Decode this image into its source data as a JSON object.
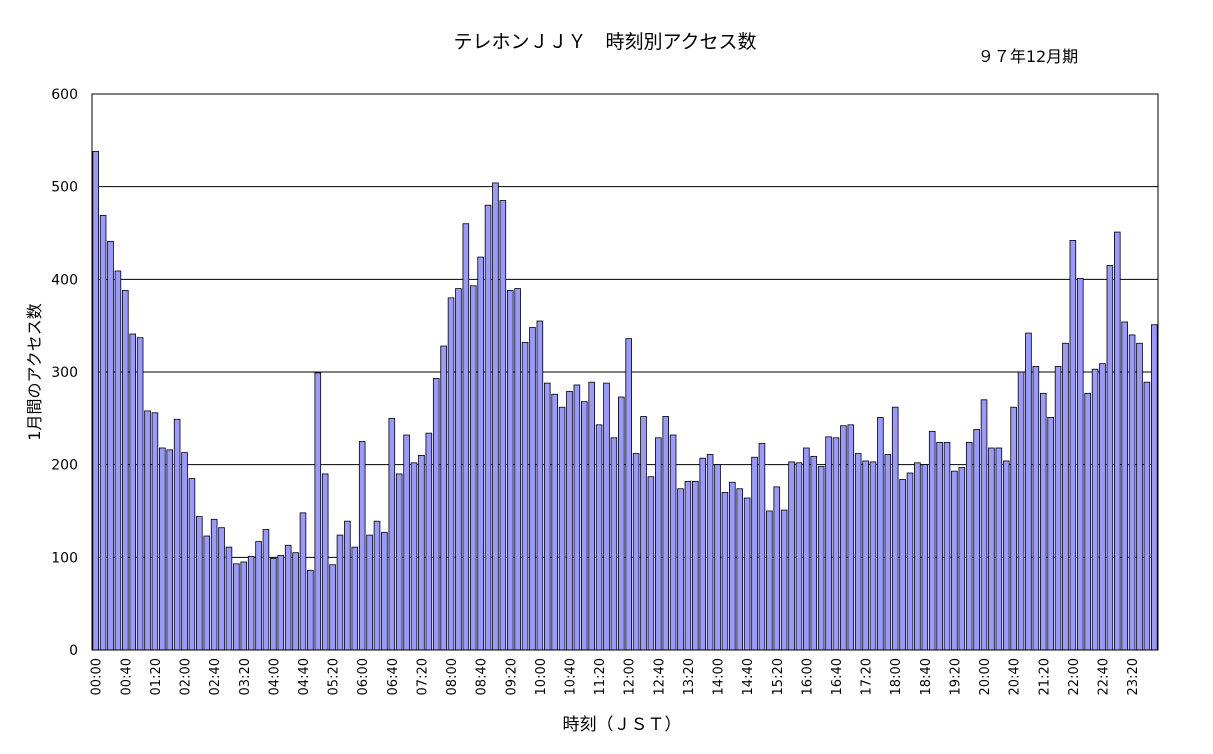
{
  "chart_data": {
    "type": "bar",
    "title": "テレホンＪＪＹ　時刻別アクセス数",
    "subtitle": "９７年12月期",
    "xlabel": "時刻（ＪＳＴ）",
    "ylabel": "1月間のアクセス数",
    "ylim": [
      0,
      600
    ],
    "yticks": [
      0,
      100,
      200,
      300,
      400,
      500,
      600
    ],
    "grid": "horizontal",
    "legend": "none",
    "colors": {
      "bar": "#9999ff",
      "bar_edge": "#000000",
      "grid": "#000000"
    },
    "x_tick_labels": [
      "00:00",
      "00:40",
      "01:20",
      "02:00",
      "02:40",
      "03:20",
      "04:00",
      "04:40",
      "05:20",
      "06:00",
      "06:40",
      "07:20",
      "08:00",
      "08:40",
      "09:20",
      "10:00",
      "10:40",
      "11:20",
      "12:00",
      "12:40",
      "13:20",
      "14:00",
      "14:40",
      "15:20",
      "16:00",
      "16:40",
      "17:20",
      "18:00",
      "18:40",
      "19:20",
      "20:00",
      "20:40",
      "21:20",
      "22:00",
      "22:40",
      "23:20"
    ],
    "values": [
      538,
      469,
      441,
      409,
      388,
      341,
      337,
      258,
      256,
      218,
      216,
      249,
      213,
      185,
      144,
      123,
      141,
      132,
      111,
      93,
      95,
      101,
      117,
      130,
      99,
      102,
      113,
      105,
      148,
      86,
      299,
      190,
      92,
      124,
      139,
      111,
      225,
      124,
      139,
      127,
      250,
      190,
      232,
      202,
      210,
      234,
      293,
      328,
      380,
      390,
      460,
      393,
      424,
      480,
      504,
      485,
      388,
      390,
      332,
      348,
      355,
      288,
      276,
      262,
      279,
      286,
      268,
      289,
      243,
      288,
      229,
      273,
      336,
      212,
      252,
      187,
      229,
      252,
      232,
      174,
      182,
      182,
      207,
      211,
      200,
      170,
      181,
      174,
      164,
      208,
      223,
      150,
      176,
      151,
      203,
      202,
      218,
      209,
      198,
      230,
      229,
      242,
      243,
      212,
      204,
      203,
      251,
      211,
      262,
      184,
      191,
      202,
      200,
      236,
      224,
      224,
      193,
      197,
      224,
      238,
      270,
      218,
      218,
      204,
      262,
      300,
      342,
      306,
      277,
      251,
      306,
      331,
      442,
      401,
      277,
      303,
      309,
      415,
      451,
      354,
      340,
      331,
      289,
      351
    ]
  }
}
